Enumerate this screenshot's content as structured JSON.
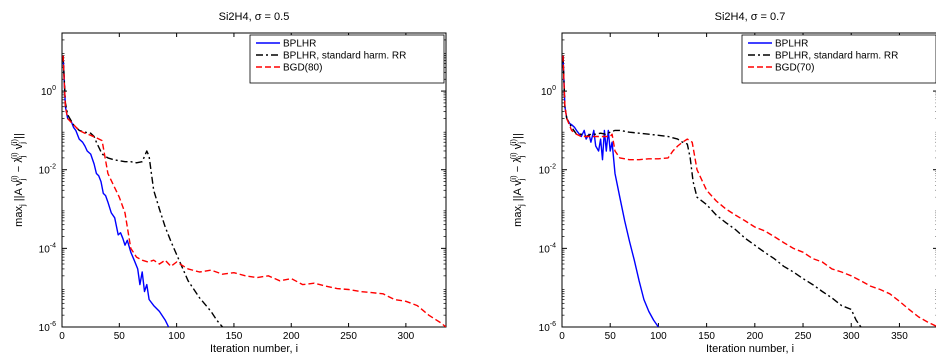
{
  "chart_data": [
    {
      "type": "line",
      "title": "Si2H4, σ = 0.5",
      "xlabel": "Iteration number, i",
      "ylabel": "max_j ||A v_j^(i) − λ_j^(i) v_j^(i)||",
      "xlim": [
        0,
        335
      ],
      "ylim": [
        1e-06,
        30
      ],
      "yscale": "log",
      "xticks": [
        0,
        50,
        100,
        150,
        200,
        250,
        300
      ],
      "yticks": [
        1e-06,
        0.0001,
        0.01,
        1
      ],
      "ytick_labels": [
        {
          "base": "10",
          "exp": "-6"
        },
        {
          "base": "10",
          "exp": "-4"
        },
        {
          "base": "10",
          "exp": "-2"
        },
        {
          "base": "10",
          "exp": "0"
        }
      ],
      "legend_position": "top-right",
      "series": [
        {
          "name": "BPLHR",
          "color": "#0000ff",
          "dash": "solid",
          "x": [
            1,
            3,
            5,
            8,
            10,
            12,
            15,
            18,
            20,
            22,
            25,
            28,
            30,
            32,
            34,
            36,
            38,
            40,
            43,
            46,
            49,
            51,
            53,
            55,
            57,
            60,
            63,
            66,
            68,
            70,
            72,
            74,
            76,
            80,
            85,
            90,
            93
          ],
          "y": [
            8,
            0.4,
            0.2,
            0.17,
            0.12,
            0.1,
            0.06,
            0.05,
            0.04,
            0.03,
            0.025,
            0.014,
            0.008,
            0.007,
            0.005,
            0.0025,
            0.0022,
            0.0015,
            0.0008,
            0.0006,
            0.00022,
            0.00025,
            0.00018,
            0.00012,
            0.00016,
            8e-05,
            5e-05,
            3e-05,
            1.2e-05,
            2.5e-05,
            8e-06,
            1.2e-05,
            5e-06,
            3.5e-06,
            2.5e-06,
            1.5e-06,
            1e-06
          ]
        },
        {
          "name": "BPLHR, standard harm. RR",
          "color": "#000000",
          "dash": "dashdot",
          "x": [
            1,
            3,
            5,
            10,
            15,
            20,
            25,
            28,
            30,
            35,
            40,
            45,
            50,
            55,
            60,
            65,
            70,
            74,
            76,
            78,
            80,
            85,
            90,
            95,
            100,
            110,
            120,
            130,
            135,
            140
          ],
          "y": [
            8,
            0.5,
            0.25,
            0.14,
            0.1,
            0.09,
            0.085,
            0.07,
            0.05,
            0.025,
            0.02,
            0.018,
            0.017,
            0.016,
            0.016,
            0.015,
            0.016,
            0.03,
            0.022,
            0.008,
            0.003,
            0.001,
            0.00035,
            0.00015,
            7e-05,
            1.5e-05,
            5.5e-06,
            2.5e-06,
            1.5e-06,
            1e-06
          ]
        },
        {
          "name": "BGD(80)",
          "color": "#ff0000",
          "dash": "dashed",
          "x": [
            1,
            3,
            5,
            10,
            15,
            20,
            25,
            30,
            35,
            40,
            45,
            50,
            55,
            60,
            65,
            70,
            75,
            80,
            85,
            90,
            95,
            100,
            110,
            120,
            130,
            140,
            150,
            160,
            170,
            180,
            190,
            200,
            210,
            220,
            230,
            240,
            250,
            260,
            270,
            280,
            290,
            300,
            310,
            320,
            330,
            335
          ],
          "y": [
            8,
            0.4,
            0.2,
            0.14,
            0.1,
            0.085,
            0.075,
            0.065,
            0.055,
            0.008,
            0.004,
            0.002,
            0.0008,
            0.0001,
            6e-05,
            5e-05,
            4.5e-05,
            5e-05,
            4e-05,
            5e-05,
            3.5e-05,
            4.5e-05,
            3e-05,
            2.5e-05,
            2.8e-05,
            2.2e-05,
            2.4e-05,
            2e-05,
            1.8e-05,
            2e-05,
            1.5e-05,
            1.7e-05,
            1.2e-05,
            1.3e-05,
            1.1e-05,
            9.5e-06,
            9e-06,
            8e-06,
            7.5e-06,
            7e-06,
            5e-06,
            4.5e-06,
            3.5e-06,
            2e-06,
            1.3e-06,
            1e-06
          ]
        }
      ]
    },
    {
      "type": "line",
      "title": "Si2H4, σ = 0.7",
      "xlabel": "Iteration number, i",
      "ylabel": "max_j ||A v_j^(i) − λ_j^(i) v_j^(i)||",
      "xlim": [
        0,
        390
      ],
      "ylim": [
        1e-06,
        30
      ],
      "yscale": "log",
      "xticks": [
        0,
        50,
        100,
        150,
        200,
        250,
        300,
        350
      ],
      "yticks": [
        1e-06,
        0.0001,
        0.01,
        1
      ],
      "ytick_labels": [
        {
          "base": "10",
          "exp": "-6"
        },
        {
          "base": "10",
          "exp": "-4"
        },
        {
          "base": "10",
          "exp": "-2"
        },
        {
          "base": "10",
          "exp": "0"
        }
      ],
      "legend_position": "top-right",
      "series": [
        {
          "name": "BPLHR",
          "color": "#0000ff",
          "dash": "solid",
          "x": [
            1,
            3,
            5,
            8,
            10,
            13,
            15,
            18,
            20,
            23,
            25,
            28,
            30,
            33,
            35,
            38,
            40,
            42,
            44,
            46,
            48,
            50,
            52,
            55,
            60,
            65,
            70,
            75,
            80,
            85,
            90,
            95,
            100
          ],
          "y": [
            8,
            0.4,
            0.2,
            0.15,
            0.14,
            0.12,
            0.1,
            0.08,
            0.07,
            0.1,
            0.06,
            0.08,
            0.05,
            0.1,
            0.04,
            0.03,
            0.06,
            0.018,
            0.1,
            0.03,
            0.1,
            0.03,
            0.05,
            0.008,
            0.002,
            0.0005,
            0.00015,
            5e-05,
            1.5e-05,
            5e-06,
            2.5e-06,
            1.5e-06,
            1e-06
          ]
        },
        {
          "name": "BPLHR, standard harm. RR",
          "color": "#000000",
          "dash": "dashdot",
          "x": [
            1,
            3,
            5,
            10,
            15,
            20,
            25,
            30,
            35,
            40,
            45,
            50,
            55,
            60,
            70,
            80,
            90,
            100,
            110,
            120,
            125,
            130,
            133,
            136,
            140,
            150,
            160,
            170,
            180,
            190,
            200,
            210,
            220,
            230,
            240,
            250,
            260,
            270,
            280,
            290,
            300,
            305,
            310
          ],
          "y": [
            8,
            0.4,
            0.2,
            0.12,
            0.08,
            0.08,
            0.07,
            0.08,
            0.08,
            0.085,
            0.08,
            0.09,
            0.1,
            0.1,
            0.09,
            0.085,
            0.08,
            0.075,
            0.07,
            0.06,
            0.05,
            0.045,
            0.02,
            0.005,
            0.002,
            0.0013,
            0.0007,
            0.00045,
            0.0003,
            0.00018,
            0.00012,
            8e-05,
            5.5e-05,
            3.5e-05,
            2.5e-05,
            1.7e-05,
            1.2e-05,
            8e-06,
            5.5e-06,
            3.5e-06,
            2.8e-06,
            1.5e-06,
            1e-06
          ]
        },
        {
          "name": "BGD(70)",
          "color": "#ff0000",
          "dash": "dashed",
          "x": [
            1,
            3,
            5,
            10,
            15,
            20,
            25,
            30,
            35,
            40,
            45,
            50,
            52,
            55,
            60,
            70,
            80,
            90,
            100,
            110,
            115,
            120,
            125,
            130,
            135,
            140,
            150,
            160,
            170,
            180,
            190,
            200,
            210,
            220,
            230,
            240,
            250,
            260,
            270,
            280,
            290,
            300,
            310,
            320,
            330,
            340,
            350,
            360,
            370,
            380,
            390
          ],
          "y": [
            8,
            0.4,
            0.2,
            0.1,
            0.08,
            0.07,
            0.07,
            0.07,
            0.07,
            0.07,
            0.07,
            0.07,
            0.08,
            0.03,
            0.02,
            0.018,
            0.018,
            0.019,
            0.019,
            0.02,
            0.03,
            0.04,
            0.05,
            0.06,
            0.05,
            0.01,
            0.003,
            0.0016,
            0.001,
            0.0007,
            0.0005,
            0.00035,
            0.00028,
            0.0002,
            0.00014,
            0.0001,
            8e-05,
            5.5e-05,
            4.5e-05,
            3e-05,
            2.5e-05,
            2e-05,
            1.5e-05,
            1.1e-05,
            9e-06,
            7e-06,
            4.5e-06,
            2.8e-06,
            1.8e-06,
            1.3e-06,
            1e-06
          ]
        }
      ]
    }
  ]
}
